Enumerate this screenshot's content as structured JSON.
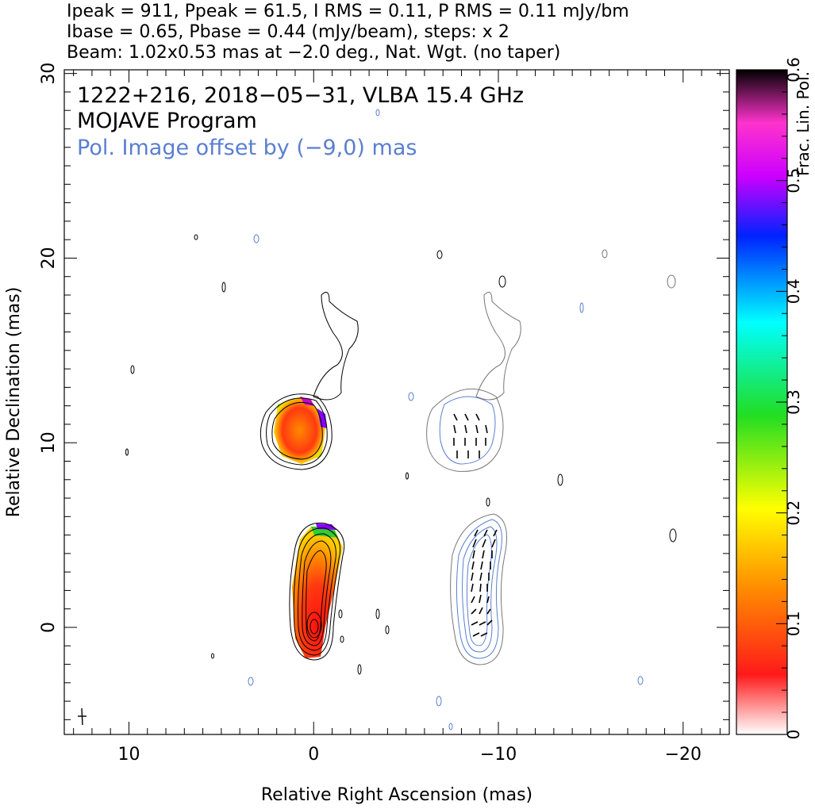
{
  "header": {
    "line1": "Ipeak = 911, Ppeak = 61.5, I RMS = 0.11, P RMS = 0.11 mJy/bm",
    "line2": "Ibase = 0.65, Pbase = 0.44 (mJy/beam), steps: x 2",
    "line3": "Beam: 1.02x0.53 mas at −2.0 deg., Nat. Wgt. (no taper)"
  },
  "chart_data": {
    "type": "heatmap",
    "title_lines": [
      "1222+216, 2018−05−31, VLBA 15.4 GHz",
      "MOJAVE Program"
    ],
    "annotation": "Pol. Image offset by (−9,0) mas",
    "annotation_color": "#5a7fd0",
    "xlabel": "Relative Right Ascension (mas)",
    "ylabel": "Relative Declination (mas)",
    "xlim": [
      13.5,
      -22.5
    ],
    "ylim": [
      -5.8,
      30.2
    ],
    "x_ticks": [
      {
        "value": 10,
        "label": "10"
      },
      {
        "value": 0,
        "label": "0"
      },
      {
        "value": -10,
        "label": "−10"
      },
      {
        "value": -20,
        "label": "−20"
      }
    ],
    "y_ticks": [
      {
        "value": 0,
        "label": "0"
      },
      {
        "value": 10,
        "label": "10"
      },
      {
        "value": 20,
        "label": "20"
      },
      {
        "value": 30,
        "label": "30"
      }
    ],
    "colorbar": {
      "label": "Frac. Lin. Pol.",
      "range": [
        0,
        0.6
      ],
      "ticks": [
        {
          "value": 0,
          "label": "0"
        },
        {
          "value": 0.1,
          "label": "0.1"
        },
        {
          "value": 0.2,
          "label": "0.2"
        },
        {
          "value": 0.3,
          "label": "0.3"
        },
        {
          "value": 0.4,
          "label": "0.4"
        },
        {
          "value": 0.5,
          "label": "0.5"
        },
        {
          "value": 0.6,
          "label": "0.6"
        }
      ],
      "colors": [
        "#ffffff",
        "#ff1a1a",
        "#ff8c00",
        "#ffff00",
        "#22dd22",
        "#00ffff",
        "#0022ff",
        "#cc00ff",
        "#ff33cc",
        "#000000"
      ]
    },
    "total_intensity_image": {
      "core": {
        "ra": 0,
        "dec": 0
      },
      "jet_extent_dec": [
        -1.5,
        5.5
      ],
      "blob": {
        "ra": 0.9,
        "dec": 10.8
      },
      "faint_extension": {
        "ra": -1.2,
        "dec": 16.5
      }
    },
    "polarization_image": {
      "offset_ra": -9,
      "core": {
        "ra": -9,
        "dec": 0
      },
      "blob": {
        "ra": -8.9,
        "dec": 11
      }
    }
  }
}
